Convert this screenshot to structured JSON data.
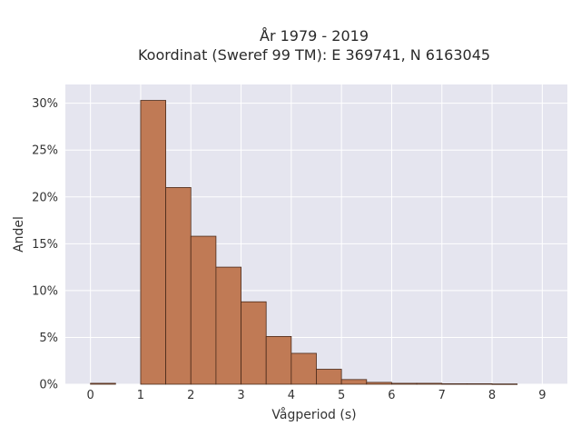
{
  "chart_data": {
    "type": "bar",
    "title": "År 1979 - 2019",
    "subtitle": "Koordinat (Sweref 99 TM): E 369741, N 6163045",
    "xlabel": "Vågperiod (s)",
    "ylabel": "Andel",
    "xlim": [
      -0.5,
      9.5
    ],
    "ylim": [
      0,
      0.32
    ],
    "xticks": [
      0,
      1,
      2,
      3,
      4,
      5,
      6,
      7,
      8,
      9
    ],
    "xtick_labels": [
      "0",
      "1",
      "2",
      "3",
      "4",
      "5",
      "6",
      "7",
      "8",
      "9"
    ],
    "yticks": [
      0,
      0.05,
      0.1,
      0.15,
      0.2,
      0.25,
      0.3
    ],
    "ytick_labels": [
      "0%",
      "5%",
      "10%",
      "15%",
      "20%",
      "25%",
      "30%"
    ],
    "bin_width": 0.5,
    "bin_starts": [
      0,
      1,
      1.5,
      2,
      2.5,
      3,
      3.5,
      4,
      4.5,
      5,
      5.5,
      6,
      6.5,
      7,
      7.5,
      8
    ],
    "values": [
      0.001,
      0.303,
      0.21,
      0.158,
      0.125,
      0.088,
      0.051,
      0.033,
      0.016,
      0.005,
      0.002,
      0.001,
      0.001,
      0.0005,
      0.0005,
      0.0003
    ],
    "grid": true,
    "legend": "none",
    "colors": {
      "bar_fill": "#c07a55",
      "bar_stroke": "#4a2a1a",
      "plot_bg": "#e5e5ef",
      "grid": "#ffffff"
    }
  }
}
